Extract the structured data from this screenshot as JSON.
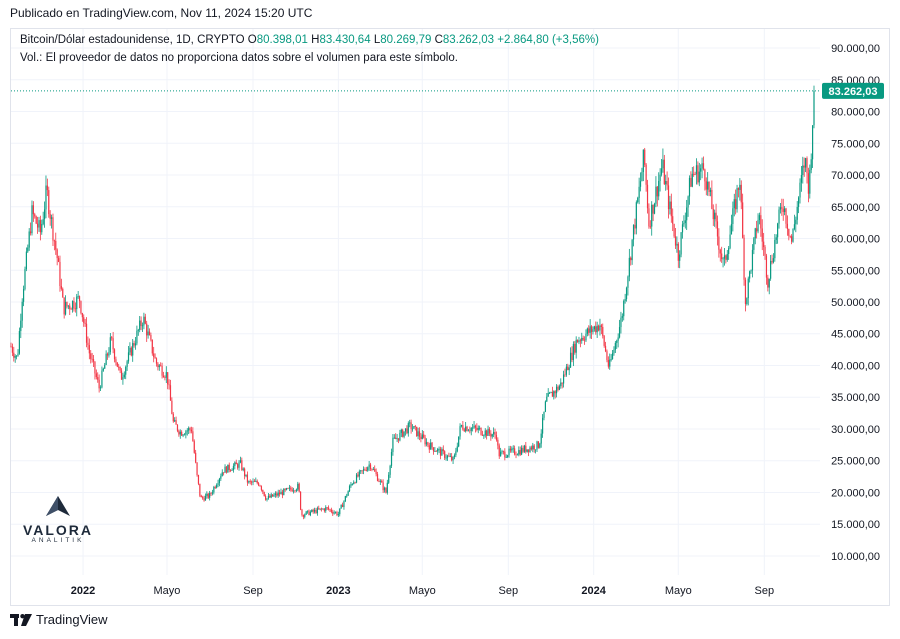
{
  "header": {
    "published": "Publicado en TradingView.com, Nov 11, 2024 15:20 UTC"
  },
  "legend": {
    "symbol": "Bitcoin/Dólar estadounidense, 1D, CRYPTO",
    "o_label": "O",
    "o_value": "80.398,01",
    "h_label": "H",
    "h_value": "83.430,64",
    "l_label": "L",
    "l_value": "80.269,79",
    "c_label": "C",
    "c_value": "83.262,03",
    "change": "+2.864,80 (+3,56%)",
    "volume_note": "Vol.: El proveedor de datos no proporciona datos sobre el volumen para este símbolo."
  },
  "price_tag": "83.262,03",
  "logo": {
    "name": "VALORA",
    "sub": "ANALITIK"
  },
  "footer": {
    "brand": "TradingView"
  },
  "colors": {
    "up": "#089981",
    "down": "#f23645",
    "grid": "#f0f3fa",
    "tag": "#089981"
  },
  "chart_data": {
    "type": "candlestick",
    "title": "Bitcoin/Dólar estadounidense, 1D, CRYPTO",
    "ylim": [
      7000,
      93000
    ],
    "y_ticks": [
      "10.000,00",
      "15.000,00",
      "20.000,00",
      "25.000,00",
      "30.000,00",
      "35.000,00",
      "40.000,00",
      "45.000,00",
      "50.000,00",
      "55.000,00",
      "60.000,00",
      "65.000,00",
      "70.000,00",
      "75.000,00",
      "80.000,00",
      "85.000,00",
      "90.000,00"
    ],
    "y_tick_values": [
      10000,
      15000,
      20000,
      25000,
      30000,
      35000,
      40000,
      45000,
      50000,
      55000,
      60000,
      65000,
      70000,
      75000,
      80000,
      85000,
      90000
    ],
    "x_ticks": [
      {
        "label": "2022",
        "date": "2022-01-01",
        "bold": true
      },
      {
        "label": "Mayo",
        "date": "2022-05-01",
        "bold": false
      },
      {
        "label": "Sep",
        "date": "2022-09-01",
        "bold": false
      },
      {
        "label": "2023",
        "date": "2023-01-01",
        "bold": true
      },
      {
        "label": "Mayo",
        "date": "2023-05-01",
        "bold": false
      },
      {
        "label": "Sep",
        "date": "2023-09-01",
        "bold": false
      },
      {
        "label": "2024",
        "date": "2024-01-01",
        "bold": true
      },
      {
        "label": "Mayo",
        "date": "2024-05-01",
        "bold": false
      },
      {
        "label": "Sep",
        "date": "2024-09-01",
        "bold": false
      }
    ],
    "x_range": [
      "2021-09-20",
      "2024-11-11"
    ],
    "last_close": 83262.03,
    "price_path": [
      [
        "2021-09-20",
        43000
      ],
      [
        "2021-09-29",
        41000
      ],
      [
        "2021-10-06",
        51000
      ],
      [
        "2021-10-20",
        64000
      ],
      [
        "2021-11-01",
        61000
      ],
      [
        "2021-11-10",
        67500
      ],
      [
        "2021-11-25",
        57000
      ],
      [
        "2021-12-04",
        49000
      ],
      [
        "2021-12-27",
        50500
      ],
      [
        "2022-01-10",
        42000
      ],
      [
        "2022-01-24",
        36500
      ],
      [
        "2022-02-10",
        44000
      ],
      [
        "2022-02-24",
        38000
      ],
      [
        "2022-03-28",
        47500
      ],
      [
        "2022-04-15",
        40500
      ],
      [
        "2022-05-01",
        38500
      ],
      [
        "2022-05-10",
        31000
      ],
      [
        "2022-05-20",
        29500
      ],
      [
        "2022-06-05",
        30000
      ],
      [
        "2022-06-13",
        22500
      ],
      [
        "2022-06-18",
        19000
      ],
      [
        "2022-07-01",
        19500
      ],
      [
        "2022-07-20",
        23500
      ],
      [
        "2022-08-14",
        24500
      ],
      [
        "2022-08-25",
        21500
      ],
      [
        "2022-09-10",
        21500
      ],
      [
        "2022-09-20",
        19000
      ],
      [
        "2022-10-25",
        20500
      ],
      [
        "2022-11-05",
        21000
      ],
      [
        "2022-11-09",
        16500
      ],
      [
        "2022-12-15",
        17500
      ],
      [
        "2023-01-01",
        16600
      ],
      [
        "2023-01-20",
        21500
      ],
      [
        "2023-02-15",
        24500
      ],
      [
        "2023-03-10",
        20000
      ],
      [
        "2023-03-20",
        28000
      ],
      [
        "2023-04-14",
        30500
      ],
      [
        "2023-05-10",
        27500
      ],
      [
        "2023-06-15",
        25000
      ],
      [
        "2023-06-25",
        30500
      ],
      [
        "2023-07-15",
        30000
      ],
      [
        "2023-08-15",
        29000
      ],
      [
        "2023-08-18",
        26000
      ],
      [
        "2023-09-15",
        26500
      ],
      [
        "2023-10-15",
        27500
      ],
      [
        "2023-10-25",
        34500
      ],
      [
        "2023-11-15",
        37000
      ],
      [
        "2023-12-08",
        44000
      ],
      [
        "2024-01-10",
        46500
      ],
      [
        "2024-01-23",
        39500
      ],
      [
        "2024-02-10",
        47500
      ],
      [
        "2024-02-28",
        62000
      ],
      [
        "2024-03-13",
        73000
      ],
      [
        "2024-03-20",
        62500
      ],
      [
        "2024-04-08",
        71500
      ],
      [
        "2024-04-20",
        64000
      ],
      [
        "2024-05-01",
        57500
      ],
      [
        "2024-05-20",
        70000
      ],
      [
        "2024-06-07",
        71000
      ],
      [
        "2024-06-25",
        61000
      ],
      [
        "2024-07-05",
        55500
      ],
      [
        "2024-07-28",
        69500
      ],
      [
        "2024-08-05",
        50000
      ],
      [
        "2024-08-24",
        64000
      ],
      [
        "2024-09-06",
        53500
      ],
      [
        "2024-09-27",
        66000
      ],
      [
        "2024-10-10",
        59500
      ],
      [
        "2024-10-29",
        72500
      ],
      [
        "2024-11-04",
        67800
      ],
      [
        "2024-11-08",
        76500
      ],
      [
        "2024-11-11",
        83262
      ]
    ]
  }
}
